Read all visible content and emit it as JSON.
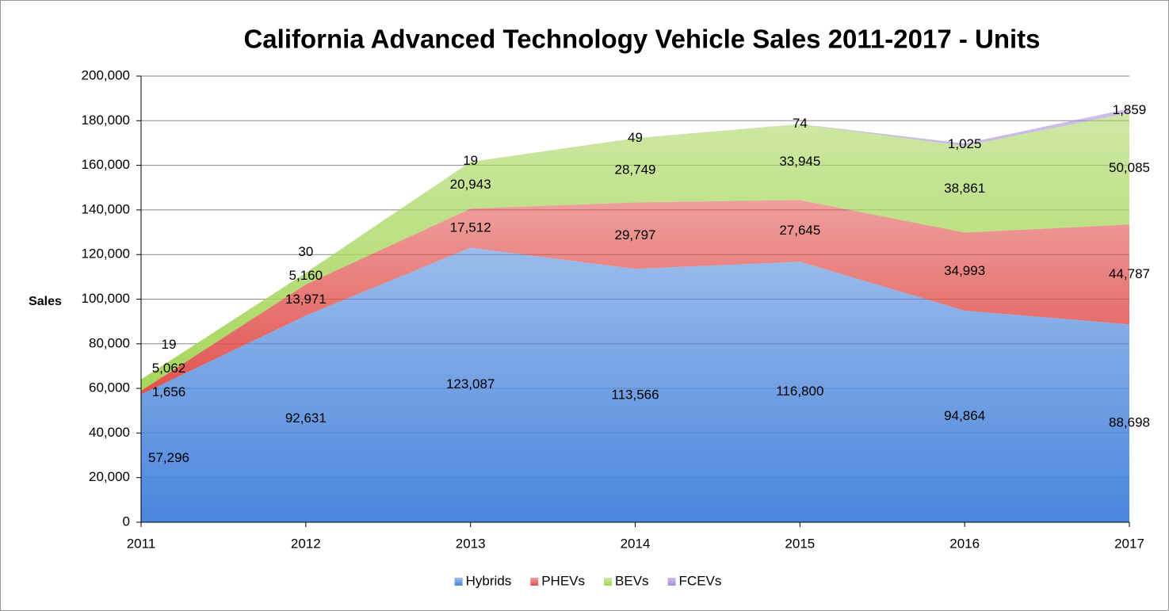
{
  "chart_data": {
    "type": "stacked_area",
    "title": "California Advanced Technology Vehicle Sales 2011-2017 - Units",
    "y_label": "Sales",
    "categories": [
      "2011",
      "2012",
      "2013",
      "2014",
      "2015",
      "2016",
      "2017"
    ],
    "ylim": [
      0,
      200000
    ],
    "yticks": [
      0,
      {
        "value": 20000,
        "label": "20,000"
      },
      {
        "value": 40000,
        "label": "40,000"
      },
      {
        "value": 60000,
        "label": "60,000"
      },
      {
        "value": 80000,
        "label": "80,000"
      },
      {
        "value": 100000,
        "label": "100,000"
      },
      {
        "value": 120000,
        "label": "120,000"
      },
      {
        "value": 140000,
        "label": "140,000"
      },
      {
        "value": 160000,
        "label": "160,000"
      },
      {
        "value": 180000,
        "label": "180,000"
      },
      {
        "value": 200000,
        "label": "200,000"
      }
    ],
    "grid": true,
    "legend": "bottom",
    "series": [
      {
        "name": "Hybrids",
        "color": "#4a86dc",
        "values": [
          57296,
          92631,
          123087,
          113566,
          116800,
          94864,
          88698
        ],
        "value_labels": [
          "57,296",
          "92,631",
          "123,087",
          "113,566",
          "116,800",
          "94,864",
          "88,698"
        ]
      },
      {
        "name": "PHEVs",
        "color": "#e0524e",
        "values": [
          1656,
          13971,
          17512,
          29797,
          27645,
          34993,
          44787
        ],
        "value_labels": [
          "1,656",
          "13,971",
          "17,512",
          "29,797",
          "27,645",
          "34,993",
          "44,787"
        ]
      },
      {
        "name": "BEVs",
        "color": "#a6d65a",
        "values": [
          5062,
          5160,
          20943,
          28749,
          33945,
          38861,
          50085
        ],
        "value_labels": [
          "5,062",
          "5,160",
          "20,943",
          "28,749",
          "33,945",
          "38,861",
          "50,085"
        ]
      },
      {
        "name": "FCEVs",
        "color": "#a98ad8",
        "values": [
          19,
          30,
          19,
          49,
          74,
          1025,
          1859
        ],
        "value_labels": [
          "19",
          "30",
          "19",
          "49",
          "74",
          "1,025",
          "1,859"
        ]
      }
    ]
  }
}
